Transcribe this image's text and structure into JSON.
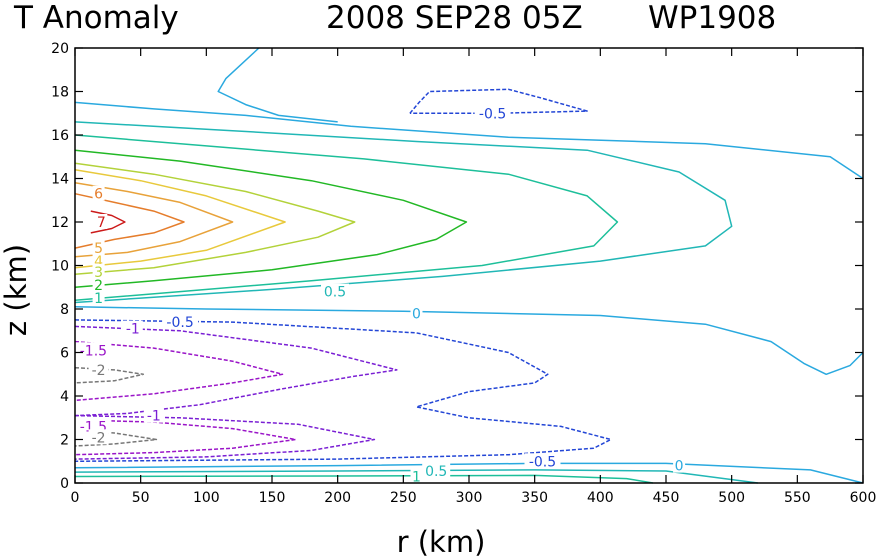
{
  "chart_data": {
    "type": "contour",
    "title": "T Anomaly",
    "datetime": "2008 SEP28 05Z",
    "storm_id": "WP1908",
    "xlabel": "r (km)",
    "ylabel": "z (km)",
    "xlim": [
      0,
      600
    ],
    "ylim": [
      0,
      20
    ],
    "xticks": [
      "0",
      "50",
      "100",
      "150",
      "200",
      "250",
      "300",
      "350",
      "400",
      "450",
      "500",
      "550",
      "600"
    ],
    "yticks": [
      "0",
      "2",
      "4",
      "6",
      "8",
      "10",
      "12",
      "14",
      "16",
      "18",
      "20"
    ],
    "contours": [
      {
        "level": 7,
        "color": "#cc1a1a",
        "dashed": false,
        "points": [
          [
            12,
            12.5
          ],
          [
            28,
            12.3
          ],
          [
            38,
            12.0
          ],
          [
            28,
            11.7
          ],
          [
            12,
            11.5
          ]
        ]
      },
      {
        "level": 6,
        "color": "#e57d2c",
        "dashed": false,
        "points": [
          [
            0,
            13.3
          ],
          [
            30,
            12.9
          ],
          [
            60,
            12.5
          ],
          [
            83,
            12.0
          ],
          [
            60,
            11.5
          ],
          [
            30,
            11.2
          ],
          [
            0,
            10.8
          ]
        ]
      },
      {
        "level": 5,
        "color": "#e8a23a",
        "dashed": false,
        "points": [
          [
            0,
            13.8
          ],
          [
            40,
            13.4
          ],
          [
            80,
            12.9
          ],
          [
            120,
            12.0
          ],
          [
            80,
            11.1
          ],
          [
            40,
            10.6
          ],
          [
            0,
            10.4
          ]
        ]
      },
      {
        "level": 4,
        "color": "#e8c93c",
        "dashed": false,
        "points": [
          [
            0,
            14.4
          ],
          [
            50,
            13.9
          ],
          [
            100,
            13.2
          ],
          [
            160,
            12.0
          ],
          [
            100,
            10.7
          ],
          [
            50,
            10.2
          ],
          [
            0,
            9.9
          ]
        ]
      },
      {
        "level": 3,
        "color": "#b3d23a",
        "dashed": false,
        "points": [
          [
            0,
            14.7
          ],
          [
            60,
            14.2
          ],
          [
            130,
            13.4
          ],
          [
            185,
            12.5
          ],
          [
            213,
            12.0
          ],
          [
            185,
            11.3
          ],
          [
            130,
            10.6
          ],
          [
            60,
            9.9
          ],
          [
            0,
            9.6
          ]
        ]
      },
      {
        "level": 2,
        "color": "#22b825",
        "dashed": false,
        "points": [
          [
            0,
            15.3
          ],
          [
            80,
            14.8
          ],
          [
            180,
            13.9
          ],
          [
            250,
            13.0
          ],
          [
            298,
            12.0
          ],
          [
            275,
            11.2
          ],
          [
            230,
            10.5
          ],
          [
            150,
            9.8
          ],
          [
            60,
            9.3
          ],
          [
            0,
            9.0
          ]
        ]
      },
      {
        "level": 1,
        "color": "#1dbf9a",
        "dashed": false,
        "points": [
          [
            0,
            16.0
          ],
          [
            100,
            15.5
          ],
          [
            220,
            14.9
          ],
          [
            330,
            14.2
          ],
          [
            390,
            13.2
          ],
          [
            413,
            12.0
          ],
          [
            395,
            10.9
          ],
          [
            310,
            10.0
          ],
          [
            180,
            9.3
          ],
          [
            80,
            8.8
          ],
          [
            0,
            8.4
          ]
        ]
      },
      {
        "level": 0.5,
        "color": "#21b7b6",
        "dashed": false,
        "points": [
          [
            0,
            16.6
          ],
          [
            120,
            16.2
          ],
          [
            260,
            15.7
          ],
          [
            390,
            15.3
          ],
          [
            460,
            14.3
          ],
          [
            495,
            13.0
          ],
          [
            500,
            11.8
          ],
          [
            480,
            10.9
          ],
          [
            400,
            10.2
          ],
          [
            280,
            9.5
          ],
          [
            150,
            8.9
          ],
          [
            50,
            8.5
          ],
          [
            0,
            8.3
          ]
        ]
      },
      {
        "level": 0,
        "color": "#2aa9df",
        "dashed": false,
        "points": [
          [
            0,
            17.5
          ],
          [
            60,
            17.2
          ],
          [
            130,
            16.9
          ],
          [
            210,
            16.4
          ],
          [
            330,
            15.9
          ],
          [
            480,
            15.6
          ],
          [
            575,
            15.0
          ],
          [
            600,
            14.0
          ]
        ]
      },
      {
        "level": 0,
        "color": "#2aa9df",
        "dashed": false,
        "points": [
          [
            140,
            20.0
          ],
          [
            115,
            18.6
          ],
          [
            109,
            18.0
          ],
          [
            130,
            17.4
          ],
          [
            155,
            16.9
          ],
          [
            200,
            16.6
          ]
        ]
      },
      {
        "level": 0,
        "color": "#2aa9df",
        "dashed": false,
        "points": [
          [
            0,
            8.1
          ],
          [
            100,
            8.0
          ],
          [
            250,
            7.9
          ],
          [
            400,
            7.7
          ],
          [
            480,
            7.3
          ],
          [
            530,
            6.5
          ],
          [
            555,
            5.5
          ],
          [
            572,
            5.0
          ],
          [
            590,
            5.4
          ],
          [
            600,
            6.0
          ]
        ]
      },
      {
        "level": 0,
        "color": "#2aa9df",
        "dashed": false,
        "points": [
          [
            0,
            0.7
          ],
          [
            200,
            0.8
          ],
          [
            350,
            0.9
          ],
          [
            450,
            0.9
          ],
          [
            560,
            0.6
          ],
          [
            600,
            0.0
          ]
        ]
      },
      {
        "level": 0.5,
        "color": "#21b7b6",
        "dashed": false,
        "points": [
          [
            0,
            0.5
          ],
          [
            200,
            0.55
          ],
          [
            350,
            0.6
          ],
          [
            450,
            0.55
          ],
          [
            520,
            0.0
          ]
        ]
      },
      {
        "level": 1,
        "color": "#1dbf9a",
        "dashed": false,
        "points": [
          [
            0,
            0.3
          ],
          [
            200,
            0.32
          ],
          [
            350,
            0.35
          ],
          [
            420,
            0.2
          ],
          [
            440,
            0.0
          ]
        ]
      },
      {
        "level": -0.5,
        "color": "#2346d6",
        "dashed": true,
        "points": [
          [
            255,
            17.0
          ],
          [
            262,
            17.5
          ],
          [
            270,
            18.0
          ],
          [
            330,
            18.1
          ],
          [
            355,
            17.7
          ],
          [
            390,
            17.1
          ],
          [
            320,
            17.0
          ],
          [
            255,
            17.0
          ]
        ]
      },
      {
        "level": -0.5,
        "color": "#2346d6",
        "dashed": true,
        "points": [
          [
            0,
            7.5
          ],
          [
            120,
            7.4
          ],
          [
            260,
            6.9
          ],
          [
            330,
            6.0
          ],
          [
            360,
            5.0
          ],
          [
            350,
            4.6
          ],
          [
            300,
            4.2
          ],
          [
            260,
            3.5
          ],
          [
            300,
            3.0
          ],
          [
            370,
            2.6
          ],
          [
            408,
            2.0
          ],
          [
            395,
            1.6
          ],
          [
            330,
            1.3
          ],
          [
            200,
            1.1
          ],
          [
            0,
            1.0
          ]
        ]
      },
      {
        "level": -1,
        "color": "#7a1fd4",
        "dashed": true,
        "points": [
          [
            0,
            7.2
          ],
          [
            80,
            7.0
          ],
          [
            180,
            6.2
          ],
          [
            245,
            5.2
          ],
          [
            212,
            4.9
          ],
          [
            155,
            4.3
          ],
          [
            95,
            3.6
          ],
          [
            40,
            3.2
          ],
          [
            0,
            3.1
          ]
        ]
      },
      {
        "level": -1,
        "color": "#7a1fd4",
        "dashed": true,
        "points": [
          [
            0,
            3.1
          ],
          [
            80,
            3.0
          ],
          [
            170,
            2.7
          ],
          [
            228,
            2.0
          ],
          [
            180,
            1.5
          ],
          [
            100,
            1.2
          ],
          [
            0,
            1.1
          ]
        ]
      },
      {
        "level": -1.5,
        "color": "#9a15c8",
        "dashed": true,
        "points": [
          [
            0,
            6.5
          ],
          [
            60,
            6.2
          ],
          [
            120,
            5.6
          ],
          [
            158,
            5.0
          ],
          [
            120,
            4.6
          ],
          [
            60,
            4.1
          ],
          [
            0,
            3.8
          ]
        ]
      },
      {
        "level": -1.5,
        "color": "#9a15c8",
        "dashed": true,
        "points": [
          [
            0,
            2.9
          ],
          [
            60,
            2.8
          ],
          [
            120,
            2.5
          ],
          [
            168,
            2.0
          ],
          [
            120,
            1.6
          ],
          [
            60,
            1.4
          ],
          [
            0,
            1.3
          ]
        ]
      },
      {
        "level": -2,
        "color": "#777777",
        "dashed": true,
        "points": [
          [
            0,
            5.3
          ],
          [
            30,
            5.2
          ],
          [
            52,
            5.0
          ],
          [
            30,
            4.7
          ],
          [
            0,
            4.6
          ]
        ]
      },
      {
        "level": -2,
        "color": "#777777",
        "dashed": true,
        "points": [
          [
            0,
            2.4
          ],
          [
            30,
            2.3
          ],
          [
            62,
            2.0
          ],
          [
            30,
            1.8
          ],
          [
            0,
            1.7
          ]
        ]
      }
    ],
    "contour_labels": [
      {
        "text": "7",
        "x": 20,
        "y": 12.0,
        "color": "#cc1a1a"
      },
      {
        "text": "6",
        "x": 18,
        "y": 13.3,
        "color": "#e57d2c"
      },
      {
        "text": "5",
        "x": 18,
        "y": 10.8,
        "color": "#e8a23a"
      },
      {
        "text": "4",
        "x": 18,
        "y": 10.2,
        "color": "#e8c93c"
      },
      {
        "text": "3",
        "x": 18,
        "y": 9.7,
        "color": "#b3d23a"
      },
      {
        "text": "2",
        "x": 18,
        "y": 9.1,
        "color": "#22b825"
      },
      {
        "text": "1",
        "x": 18,
        "y": 8.5,
        "color": "#1dbf9a"
      },
      {
        "text": "0.5",
        "x": 198,
        "y": 8.8,
        "color": "#21b7b6"
      },
      {
        "text": "0",
        "x": 260,
        "y": 7.8,
        "color": "#2aa9df"
      },
      {
        "text": "-0.5",
        "x": 80,
        "y": 7.4,
        "color": "#2346d6"
      },
      {
        "text": "-1",
        "x": 44,
        "y": 7.1,
        "color": "#7a1fd4"
      },
      {
        "text": "-1.5",
        "x": 14,
        "y": 6.1,
        "color": "#9a15c8"
      },
      {
        "text": "-2",
        "x": 18,
        "y": 5.2,
        "color": "#777777"
      },
      {
        "text": "-0.5",
        "x": 318,
        "y": 17.0,
        "color": "#2346d6"
      },
      {
        "text": "-1",
        "x": 60,
        "y": 3.1,
        "color": "#7a1fd4"
      },
      {
        "text": "-1.5",
        "x": 14,
        "y": 2.6,
        "color": "#9a15c8"
      },
      {
        "text": "-2",
        "x": 18,
        "y": 2.1,
        "color": "#777777"
      },
      {
        "text": "-0.5",
        "x": 356,
        "y": 1.0,
        "color": "#2346d6"
      },
      {
        "text": "0",
        "x": 460,
        "y": 0.8,
        "color": "#2aa9df"
      },
      {
        "text": "0.5",
        "x": 275,
        "y": 0.55,
        "color": "#21b7b6"
      },
      {
        "text": "1",
        "x": 260,
        "y": 0.3,
        "color": "#1dbf9a"
      }
    ]
  }
}
